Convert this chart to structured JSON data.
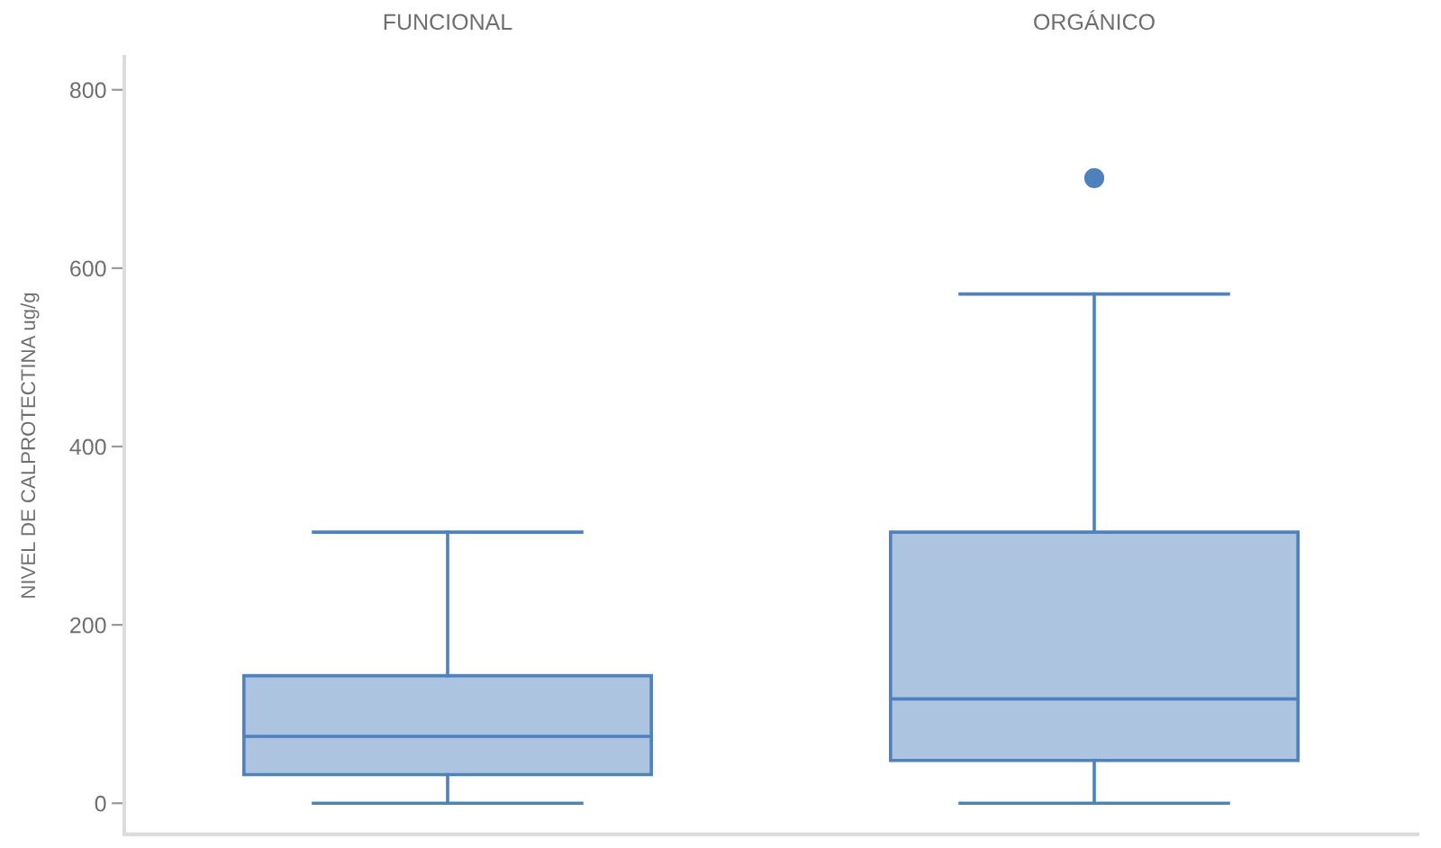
{
  "chart_data": {
    "type": "box",
    "categories": [
      "FUNCIONAL",
      "ORGÁNICO"
    ],
    "ylabel": "NIVEL DE CALPROTECTINA ug/g",
    "ylim": [
      -35,
      837
    ],
    "yticks": [
      0,
      200,
      400,
      600,
      800
    ],
    "series": [
      {
        "color": "#4f81bd",
        "boxes": [
          {
            "low": 0,
            "q1": 32,
            "median": 75,
            "q3": 143,
            "high": 304
          },
          {
            "low": 0,
            "q1": 48,
            "median": 117,
            "q3": 304,
            "high": 571,
            "outliers": [
              701
            ]
          }
        ]
      }
    ]
  }
}
